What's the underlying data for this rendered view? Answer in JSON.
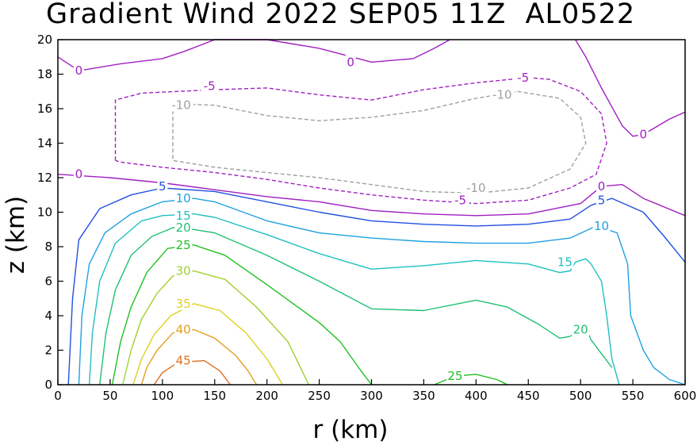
{
  "chart_data": {
    "type": "contour",
    "title": "Gradient Wind 2022 SEP05 11Z  AL0522",
    "xlabel": "r (km)",
    "ylabel": "z (km)",
    "xlim": [
      0,
      600
    ],
    "ylim": [
      0,
      20
    ],
    "xticks": [
      "0",
      "50",
      "100",
      "150",
      "200",
      "250",
      "300",
      "350",
      "400",
      "450",
      "500",
      "550",
      "600"
    ],
    "yticks": [
      "0",
      "2",
      "4",
      "6",
      "8",
      "10",
      "12",
      "14",
      "16",
      "18",
      "20"
    ],
    "levels": [
      {
        "value": -10,
        "color": "#a0a0a0",
        "dashed": true,
        "label": "-10",
        "lines": [
          [
            [
              110,
              15.9
            ],
            [
              110,
              13
            ],
            [
              150,
              12.6
            ],
            [
              200,
              12.3
            ],
            [
              250,
              12
            ],
            [
              300,
              11.6
            ],
            [
              350,
              11.2
            ],
            [
              400,
              11.1
            ],
            [
              450,
              11.4
            ],
            [
              490,
              12.5
            ],
            [
              505,
              14
            ],
            [
              500,
              15.5
            ],
            [
              480,
              16.6
            ],
            [
              440,
              17
            ],
            [
              400,
              16.6
            ],
            [
              350,
              15.9
            ],
            [
              300,
              15.5
            ],
            [
              250,
              15.3
            ],
            [
              200,
              15.6
            ],
            [
              150,
              16.2
            ],
            [
              110,
              16.3
            ],
            [
              110,
              15.9
            ]
          ]
        ],
        "labels": [
          [
            118,
            16.2
          ],
          [
            400,
            11.4
          ],
          [
            425,
            16.8
          ]
        ]
      },
      {
        "value": -5,
        "color": "#a020c0",
        "dashed": true,
        "label": "-5",
        "lines": [
          [
            [
              55,
              13
            ],
            [
              55,
              16.5
            ],
            [
              80,
              16.9
            ],
            [
              150,
              17.1
            ],
            [
              200,
              17.2
            ],
            [
              250,
              16.8
            ],
            [
              300,
              16.5
            ],
            [
              350,
              17.1
            ],
            [
              400,
              17.5
            ],
            [
              450,
              17.8
            ],
            [
              470,
              17.7
            ],
            [
              500,
              17
            ],
            [
              520,
              15.7
            ],
            [
              525,
              14
            ],
            [
              515,
              12.2
            ],
            [
              490,
              11.4
            ],
            [
              450,
              10.7
            ],
            [
              400,
              10.5
            ],
            [
              350,
              10.7
            ],
            [
              300,
              11
            ],
            [
              250,
              11.4
            ],
            [
              200,
              11.9
            ],
            [
              150,
              12.3
            ],
            [
              100,
              12.6
            ],
            [
              60,
              12.9
            ],
            [
              55,
              13
            ]
          ]
        ],
        "labels": [
          [
            145,
            17.3
          ],
          [
            385,
            10.7
          ],
          [
            445,
            17.8
          ]
        ]
      },
      {
        "value": 0,
        "color": "#a020c0",
        "dashed": false,
        "label": "0",
        "lines": [
          [
            [
              0,
              19
            ],
            [
              20,
              18.2
            ],
            [
              60,
              18.6
            ],
            [
              100,
              18.9
            ],
            [
              120,
              19.3
            ],
            [
              150,
              20
            ],
            [
              200,
              20
            ],
            [
              250,
              19.5
            ],
            [
              300,
              18.7
            ],
            [
              340,
              18.9
            ],
            [
              360,
              19.5
            ],
            [
              375,
              20
            ]
          ],
          [
            [
              495,
              20
            ],
            [
              505,
              19
            ],
            [
              520,
              17.2
            ],
            [
              540,
              15
            ],
            [
              550,
              14.4
            ],
            [
              560,
              14.5
            ],
            [
              585,
              15.4
            ],
            [
              600,
              15.8
            ]
          ],
          [
            [
              0,
              12.2
            ],
            [
              50,
              12
            ],
            [
              100,
              11.7
            ],
            [
              150,
              11.3
            ],
            [
              200,
              10.9
            ],
            [
              250,
              10.6
            ],
            [
              300,
              10.1
            ],
            [
              350,
              9.9
            ],
            [
              400,
              9.8
            ],
            [
              450,
              9.9
            ],
            [
              500,
              10.5
            ],
            [
              520,
              11.5
            ],
            [
              540,
              11.6
            ],
            [
              560,
              10.8
            ],
            [
              600,
              9.8
            ]
          ]
        ],
        "labels": [
          [
            20,
            18.2
          ],
          [
            280,
            18.7
          ],
          [
            560,
            14.5
          ],
          [
            20,
            12.2
          ],
          [
            520,
            11.5
          ]
        ]
      },
      {
        "value": 5,
        "color": "#2050e0",
        "dashed": false,
        "label": "5",
        "lines": [
          [
            [
              10,
              0
            ],
            [
              14,
              5
            ],
            [
              20,
              8.4
            ],
            [
              40,
              10.2
            ],
            [
              70,
              11
            ],
            [
              100,
              11.4
            ],
            [
              150,
              11.2
            ],
            [
              200,
              10.6
            ],
            [
              250,
              10
            ],
            [
              300,
              9.5
            ],
            [
              350,
              9.3
            ],
            [
              400,
              9.2
            ],
            [
              450,
              9.3
            ],
            [
              490,
              9.6
            ],
            [
              510,
              10.4
            ],
            [
              530,
              10.8
            ],
            [
              560,
              10
            ],
            [
              580,
              8.6
            ],
            [
              600,
              7.1
            ]
          ]
        ],
        "labels": [
          [
            100,
            11.5
          ],
          [
            520,
            10.7
          ]
        ]
      },
      {
        "value": 10,
        "color": "#20a0e0",
        "dashed": false,
        "label": "10",
        "lines": [
          [
            [
              20,
              0
            ],
            [
              23,
              4
            ],
            [
              30,
              7
            ],
            [
              45,
              8.8
            ],
            [
              70,
              9.9
            ],
            [
              100,
              10.6
            ],
            [
              130,
              10.8
            ],
            [
              150,
              10.6
            ],
            [
              200,
              9.5
            ],
            [
              250,
              8.8
            ],
            [
              300,
              8.5
            ],
            [
              350,
              8.3
            ],
            [
              400,
              8.2
            ],
            [
              450,
              8.2
            ],
            [
              490,
              8.5
            ],
            [
              515,
              9.2
            ],
            [
              535,
              8.8
            ],
            [
              545,
              7
            ],
            [
              548,
              4
            ],
            [
              560,
              2
            ],
            [
              570,
              1
            ],
            [
              585,
              0.3
            ],
            [
              600,
              0
            ]
          ]
        ],
        "labels": [
          [
            120,
            10.8
          ],
          [
            520,
            9.2
          ]
        ]
      },
      {
        "value": 15,
        "color": "#20c0c0",
        "dashed": false,
        "label": "15",
        "lines": [
          [
            [
              30,
              0
            ],
            [
              33,
              3
            ],
            [
              40,
              6
            ],
            [
              55,
              8.2
            ],
            [
              80,
              9.5
            ],
            [
              100,
              9.8
            ],
            [
              130,
              9.9
            ],
            [
              150,
              9.7
            ],
            [
              200,
              8.7
            ],
            [
              250,
              7.6
            ],
            [
              300,
              6.7
            ],
            [
              350,
              6.9
            ],
            [
              400,
              7.2
            ],
            [
              450,
              7.0
            ],
            [
              480,
              6.5
            ],
            [
              490,
              6.6
            ],
            [
              495,
              7.1
            ],
            [
              505,
              7.3
            ],
            [
              510,
              7
            ],
            [
              520,
              6
            ],
            [
              525,
              4
            ],
            [
              530,
              1.5
            ],
            [
              537,
              0
            ]
          ]
        ],
        "labels": [
          [
            120,
            9.8
          ],
          [
            485,
            7.1
          ]
        ]
      },
      {
        "value": 20,
        "color": "#20c070",
        "dashed": false,
        "label": "20",
        "lines": [
          [
            [
              40,
              0
            ],
            [
              46,
              3
            ],
            [
              55,
              5.5
            ],
            [
              70,
              7.5
            ],
            [
              90,
              8.6
            ],
            [
              110,
              9.1
            ],
            [
              130,
              9
            ],
            [
              150,
              8.8
            ],
            [
              200,
              7.5
            ],
            [
              250,
              6
            ],
            [
              300,
              4.4
            ],
            [
              350,
              4.3
            ],
            [
              400,
              4.9
            ],
            [
              430,
              4.5
            ],
            [
              460,
              3.5
            ],
            [
              480,
              2.7
            ],
            [
              490,
              2.8
            ],
            [
              500,
              3.2
            ],
            [
              505,
              3.3
            ],
            [
              510,
              2.6
            ],
            [
              520,
              1.8
            ],
            [
              530,
              1
            ]
          ]
        ],
        "labels": [
          [
            120,
            9.1
          ],
          [
            500,
            3.2
          ]
        ]
      },
      {
        "value": 25,
        "color": "#20c020",
        "dashed": false,
        "label": "25",
        "lines": [
          [
            [
              52,
              0
            ],
            [
              60,
              2.5
            ],
            [
              70,
              4.5
            ],
            [
              85,
              6.5
            ],
            [
              105,
              7.9
            ],
            [
              130,
              8.1
            ],
            [
              160,
              7.5
            ],
            [
              200,
              5.8
            ],
            [
              250,
              3.6
            ],
            [
              270,
              2.5
            ],
            [
              290,
              0.8
            ],
            [
              300,
              0
            ]
          ],
          [
            [
              360,
              0
            ],
            [
              380,
              0.5
            ],
            [
              400,
              0.6
            ],
            [
              420,
              0.3
            ],
            [
              430,
              0
            ]
          ]
        ],
        "labels": [
          [
            120,
            8.1
          ],
          [
            380,
            0.5
          ]
        ]
      },
      {
        "value": 30,
        "color": "#a0d030",
        "dashed": false,
        "label": "30",
        "lines": [
          [
            [
              62,
              0
            ],
            [
              70,
              2
            ],
            [
              80,
              3.8
            ],
            [
              95,
              5.3
            ],
            [
              110,
              6.3
            ],
            [
              130,
              6.6
            ],
            [
              160,
              6.1
            ],
            [
              190,
              4.5
            ],
            [
              220,
              2.5
            ],
            [
              240,
              0
            ]
          ]
        ],
        "labels": [
          [
            120,
            6.6
          ]
        ]
      },
      {
        "value": 35,
        "color": "#e0d020",
        "dashed": false,
        "label": "35",
        "lines": [
          [
            [
              72,
              0
            ],
            [
              80,
              1.5
            ],
            [
              92,
              2.9
            ],
            [
              108,
              4
            ],
            [
              130,
              4.7
            ],
            [
              155,
              4.3
            ],
            [
              180,
              3
            ],
            [
              200,
              1.5
            ],
            [
              215,
              0
            ]
          ]
        ],
        "labels": [
          [
            120,
            4.7
          ]
        ]
      },
      {
        "value": 40,
        "color": "#e0a020",
        "dashed": false,
        "label": "40",
        "lines": [
          [
            [
              80,
              0
            ],
            [
              85,
              1
            ],
            [
              95,
              2
            ],
            [
              110,
              3
            ],
            [
              130,
              3.2
            ],
            [
              150,
              2.7
            ],
            [
              170,
              1.7
            ],
            [
              182,
              0.8
            ],
            [
              190,
              0
            ]
          ]
        ],
        "labels": [
          [
            120,
            3.2
          ]
        ]
      },
      {
        "value": 45,
        "color": "#e07020",
        "dashed": false,
        "label": "45",
        "lines": [
          [
            [
              92,
              0
            ],
            [
              100,
              0.7
            ],
            [
              115,
              1.3
            ],
            [
              140,
              1.4
            ],
            [
              155,
              0.8
            ],
            [
              165,
              0
            ]
          ]
        ],
        "labels": [
          [
            120,
            1.4
          ]
        ]
      }
    ]
  }
}
